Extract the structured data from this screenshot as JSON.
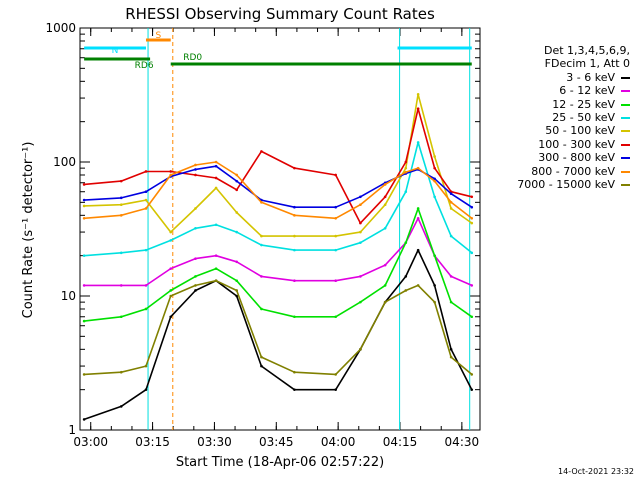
{
  "chart_data": {
    "type": "line",
    "title": "RHESSI Observing Summary Count Rates",
    "xlabel": "Start Time (18-Apr-06 02:57:22)",
    "ylabel": "Count Rate (s⁻¹ detector⁻¹)",
    "yscale": "log",
    "ylim": [
      1,
      1000
    ],
    "yticks": [
      {
        "value": 1,
        "label": "1"
      },
      {
        "value": 10,
        "label": "10"
      },
      {
        "value": 100,
        "label": "100"
      },
      {
        "value": 1000,
        "label": "1000"
      }
    ],
    "xlim_minutes": [
      0,
      97
    ],
    "xticks": [
      {
        "label": "03:00",
        "minutes": 2.6
      },
      {
        "label": "03:15",
        "minutes": 17.6
      },
      {
        "label": "03:30",
        "minutes": 32.6
      },
      {
        "label": "03:45",
        "minutes": 47.6
      },
      {
        "label": "04:00",
        "minutes": 62.6
      },
      {
        "label": "04:15",
        "minutes": 77.6
      },
      {
        "label": "04:30",
        "minutes": 92.6
      }
    ],
    "legend_header": [
      "Det 1,3,4,5,6,9,",
      "FDecim 1, Att 0"
    ],
    "legend_position": "right",
    "series": [
      {
        "name": "3 - 6 keV",
        "color": "#000000",
        "points": [
          [
            1,
            1.2
          ],
          [
            10,
            1.5
          ],
          [
            16,
            2.0
          ],
          [
            22,
            7
          ],
          [
            28,
            11
          ],
          [
            33,
            13
          ],
          [
            38,
            10
          ],
          [
            44,
            3
          ],
          [
            52,
            2
          ],
          [
            62,
            2
          ],
          [
            68,
            4
          ],
          [
            74,
            9
          ],
          [
            79,
            14
          ],
          [
            82,
            22
          ],
          [
            86,
            12
          ],
          [
            90,
            4
          ],
          [
            95,
            2
          ]
        ]
      },
      {
        "name": "6 - 12 keV",
        "color": "#e000e0",
        "points": [
          [
            1,
            12
          ],
          [
            10,
            12
          ],
          [
            16,
            12
          ],
          [
            22,
            16
          ],
          [
            28,
            19
          ],
          [
            33,
            20
          ],
          [
            38,
            18
          ],
          [
            44,
            14
          ],
          [
            52,
            13
          ],
          [
            62,
            13
          ],
          [
            68,
            14
          ],
          [
            74,
            17
          ],
          [
            79,
            25
          ],
          [
            82,
            38
          ],
          [
            86,
            20
          ],
          [
            90,
            14
          ],
          [
            95,
            12
          ]
        ]
      },
      {
        "name": "12 - 25 keV",
        "color": "#00e000",
        "points": [
          [
            1,
            6.5
          ],
          [
            10,
            7
          ],
          [
            16,
            8
          ],
          [
            22,
            11
          ],
          [
            28,
            14
          ],
          [
            33,
            16
          ],
          [
            38,
            13
          ],
          [
            44,
            8
          ],
          [
            52,
            7
          ],
          [
            62,
            7
          ],
          [
            68,
            9
          ],
          [
            74,
            12
          ],
          [
            79,
            25
          ],
          [
            82,
            45
          ],
          [
            86,
            20
          ],
          [
            90,
            9
          ],
          [
            95,
            7
          ]
        ]
      },
      {
        "name": "25 - 50 keV",
        "color": "#00e0e0",
        "points": [
          [
            1,
            20
          ],
          [
            10,
            21
          ],
          [
            16,
            22
          ],
          [
            22,
            26
          ],
          [
            28,
            32
          ],
          [
            33,
            34
          ],
          [
            38,
            30
          ],
          [
            44,
            24
          ],
          [
            52,
            22
          ],
          [
            62,
            22
          ],
          [
            68,
            25
          ],
          [
            74,
            32
          ],
          [
            79,
            60
          ],
          [
            82,
            140
          ],
          [
            86,
            55
          ],
          [
            90,
            28
          ],
          [
            95,
            21
          ]
        ]
      },
      {
        "name": "50 - 100 keV",
        "color": "#d4c400",
        "points": [
          [
            1,
            47
          ],
          [
            10,
            48
          ],
          [
            16,
            52
          ],
          [
            22,
            30
          ],
          [
            28,
            45
          ],
          [
            33,
            64
          ],
          [
            38,
            42
          ],
          [
            44,
            28
          ],
          [
            52,
            28
          ],
          [
            62,
            28
          ],
          [
            68,
            30
          ],
          [
            74,
            48
          ],
          [
            79,
            90
          ],
          [
            82,
            320
          ],
          [
            86,
            110
          ],
          [
            90,
            45
          ],
          [
            95,
            35
          ]
        ]
      },
      {
        "name": "100 - 300 keV",
        "color": "#e00000",
        "points": [
          [
            1,
            68
          ],
          [
            10,
            72
          ],
          [
            16,
            85
          ],
          [
            22,
            85
          ],
          [
            28,
            80
          ],
          [
            33,
            76
          ],
          [
            38,
            62
          ],
          [
            44,
            120
          ],
          [
            52,
            90
          ],
          [
            62,
            80
          ],
          [
            68,
            35
          ],
          [
            74,
            55
          ],
          [
            79,
            100
          ],
          [
            82,
            250
          ],
          [
            86,
            90
          ],
          [
            90,
            60
          ],
          [
            95,
            55
          ]
        ]
      },
      {
        "name": "300 - 800 keV",
        "color": "#0000e0",
        "points": [
          [
            1,
            52
          ],
          [
            10,
            54
          ],
          [
            16,
            60
          ],
          [
            22,
            78
          ],
          [
            28,
            88
          ],
          [
            33,
            93
          ],
          [
            38,
            72
          ],
          [
            44,
            52
          ],
          [
            52,
            46
          ],
          [
            62,
            46
          ],
          [
            68,
            55
          ],
          [
            74,
            70
          ],
          [
            79,
            82
          ],
          [
            82,
            88
          ],
          [
            86,
            75
          ],
          [
            90,
            58
          ],
          [
            95,
            46
          ]
        ]
      },
      {
        "name": "800 - 7000 keV",
        "color": "#ff8800",
        "points": [
          [
            1,
            38
          ],
          [
            10,
            40
          ],
          [
            16,
            45
          ],
          [
            22,
            80
          ],
          [
            28,
            95
          ],
          [
            33,
            100
          ],
          [
            38,
            80
          ],
          [
            44,
            50
          ],
          [
            52,
            40
          ],
          [
            62,
            38
          ],
          [
            68,
            48
          ],
          [
            74,
            68
          ],
          [
            79,
            84
          ],
          [
            82,
            90
          ],
          [
            86,
            72
          ],
          [
            90,
            50
          ],
          [
            95,
            38
          ]
        ]
      },
      {
        "name": "7000 - 15000 keV",
        "color": "#808000",
        "points": [
          [
            1,
            2.6
          ],
          [
            10,
            2.7
          ],
          [
            16,
            3.0
          ],
          [
            22,
            10
          ],
          [
            28,
            12
          ],
          [
            33,
            13
          ],
          [
            38,
            11
          ],
          [
            44,
            3.5
          ],
          [
            52,
            2.7
          ],
          [
            62,
            2.6
          ],
          [
            68,
            4
          ],
          [
            74,
            9
          ],
          [
            79,
            11
          ],
          [
            82,
            12
          ],
          [
            86,
            9
          ],
          [
            90,
            3.5
          ],
          [
            95,
            2.6
          ]
        ]
      }
    ],
    "attenuator_bars": [
      {
        "label": "S",
        "color": "#ff8800",
        "start": 16,
        "end": 22
      },
      {
        "label": "N",
        "color": "#00e0ff",
        "start": 1,
        "end": 16
      },
      {
        "label": "",
        "color": "#00e0ff",
        "start": 77,
        "end": 95
      }
    ],
    "data_gaps_bars": [
      {
        "label": "RD6",
        "color": "#008000",
        "start": 1,
        "end": 17
      },
      {
        "label": "RD0",
        "color": "#008000",
        "start": 22,
        "end": 95
      }
    ],
    "vertical_markers": [
      {
        "minutes": 16.5,
        "color": "#00e0e0"
      },
      {
        "minutes": 22.5,
        "color": "#ff8800"
      },
      {
        "minutes": 77.5,
        "color": "#00e0e0"
      },
      {
        "minutes": 94.5,
        "color": "#00e0e0"
      }
    ]
  },
  "footer": {
    "timestamp": "14-Oct-2021 23:32"
  }
}
